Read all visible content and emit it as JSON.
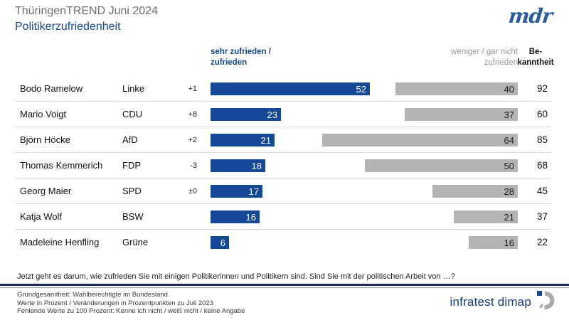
{
  "header": {
    "pretitle": "ThüringenTREND Juni 2024",
    "title": "Politikerzufriedenheit",
    "brand": "mdr"
  },
  "chart_data": {
    "type": "bar",
    "orientation": "horizontal",
    "value_unit": "percent",
    "xlim": [
      0,
      100
    ],
    "subtitle": "ThüringenTREND Juni 2024",
    "title": "Politikerzufriedenheit",
    "legend": {
      "positive": "sehr zufrieden /\nzufrieden",
      "negative": "weniger / gar nicht\nzufrieden",
      "awareness": "Be-\nkanntheit"
    },
    "rows": [
      {
        "name": "Bodo Ramelow",
        "party": "Linke",
        "change": "+1",
        "satisfied": 52,
        "dissatisfied": 40,
        "bekanntheit": 92
      },
      {
        "name": "Mario Voigt",
        "party": "CDU",
        "change": "+8",
        "satisfied": 23,
        "dissatisfied": 37,
        "bekanntheit": 60
      },
      {
        "name": "Björn Höcke",
        "party": "AfD",
        "change": "+2",
        "satisfied": 21,
        "dissatisfied": 64,
        "bekanntheit": 85
      },
      {
        "name": "Thomas Kemmerich",
        "party": "FDP",
        "change": "-3",
        "satisfied": 18,
        "dissatisfied": 50,
        "bekanntheit": 68
      },
      {
        "name": "Georg Maier",
        "party": "SPD",
        "change": "±0",
        "satisfied": 17,
        "dissatisfied": 28,
        "bekanntheit": 45
      },
      {
        "name": "Katja Wolf",
        "party": "BSW",
        "change": "",
        "satisfied": 16,
        "dissatisfied": 21,
        "bekanntheit": 37
      },
      {
        "name": "Madeleine Henfling",
        "party": "Grüne",
        "change": "",
        "satisfied": 6,
        "dissatisfied": 16,
        "bekanntheit": 22
      }
    ]
  },
  "question": "Jetzt geht es darum, wie zufrieden  Sie mit einigen Politikerinnen und Politikern sind. Sind Sie mit der politischen Arbeit von …?",
  "footer": {
    "lines": [
      "Grundgesamtheit:  Wahlberechtigte  im Bundesland",
      "Werte in Prozent / Veränderungen  in Prozentpunkten zu Juli 2023",
      "Fehlende  Werte zu 100 Prozent: Kenne ich nicht / weiß nicht / keine Angabe"
    ],
    "brand": "infratest dimap"
  },
  "colors": {
    "bar_blue": "#154896",
    "bar_gray": "#b4b4b4",
    "title_blue": "#154896",
    "pretitle_gray": "#6e6e6e",
    "header_gray": "#999999",
    "separator": "#d8d8d8",
    "divider_navy": "#1f2b5b",
    "brand_navy": "#163a7d"
  }
}
